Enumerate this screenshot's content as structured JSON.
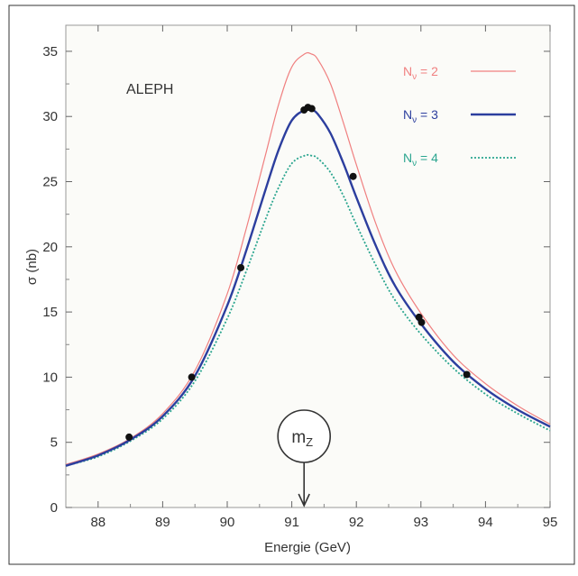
{
  "chart_data": {
    "type": "line",
    "title": "",
    "xlabel": "Energie (GeV)",
    "ylabel": "σ (nb)",
    "xlim": [
      87.5,
      95
    ],
    "ylim": [
      0,
      37
    ],
    "x_ticks": [
      "88",
      "89",
      "90",
      "91",
      "92",
      "93",
      "94",
      "95"
    ],
    "y_ticks": [
      "0",
      "5",
      "10",
      "15",
      "20",
      "25",
      "30",
      "35"
    ],
    "grid": false,
    "annotations": {
      "experiment": "ALEPH",
      "peak_marker": "mZ",
      "peak_marker_sub": "Z",
      "peak_marker_base": "m",
      "peak_x": 91.19
    },
    "legend": {
      "placement": "top-right",
      "entries": [
        {
          "label_base": "N",
          "label_sub": "ν",
          "label_rest": " = 2",
          "color": "#f08080",
          "style": "thin-solid"
        },
        {
          "label_base": "N",
          "label_sub": "ν",
          "label_rest": " = 3",
          "color": "#2c3e9e",
          "style": "thick-solid"
        },
        {
          "label_base": "N",
          "label_sub": "ν",
          "label_rest": " = 4",
          "color": "#2aa58f",
          "style": "dotted"
        }
      ]
    },
    "series": [
      {
        "name": "Nν = 2",
        "color": "#f08080",
        "x": [
          87.5,
          88.0,
          88.5,
          89.0,
          89.5,
          90.0,
          90.3,
          90.6,
          90.8,
          91.0,
          91.2,
          91.3,
          91.4,
          91.6,
          91.8,
          92.0,
          92.3,
          92.6,
          93.0,
          93.5,
          94.0,
          94.5,
          95.0
        ],
        "y": [
          3.3,
          4.1,
          5.3,
          7.2,
          10.5,
          16.4,
          21.5,
          27.2,
          31.0,
          33.8,
          34.8,
          34.8,
          34.4,
          32.5,
          29.5,
          26.3,
          21.8,
          18.2,
          14.9,
          11.7,
          9.5,
          7.8,
          6.4
        ]
      },
      {
        "name": "Nν = 3",
        "color": "#2c3e9e",
        "x": [
          87.5,
          88.0,
          88.5,
          89.0,
          89.5,
          90.0,
          90.3,
          90.6,
          90.8,
          91.0,
          91.2,
          91.3,
          91.4,
          91.6,
          91.8,
          92.0,
          92.3,
          92.6,
          93.0,
          93.5,
          94.0,
          94.5,
          95.0
        ],
        "y": [
          3.2,
          4.0,
          5.2,
          7.0,
          10.1,
          15.5,
          19.8,
          24.5,
          27.5,
          29.7,
          30.5,
          30.5,
          30.2,
          28.7,
          26.4,
          23.8,
          20.1,
          17.0,
          14.1,
          11.2,
          9.1,
          7.5,
          6.2
        ]
      },
      {
        "name": "Nν = 4",
        "color": "#2aa58f",
        "x": [
          87.5,
          88.0,
          88.5,
          89.0,
          89.5,
          90.0,
          90.3,
          90.6,
          90.8,
          91.0,
          91.2,
          91.3,
          91.4,
          91.6,
          91.8,
          92.0,
          92.3,
          92.6,
          93.0,
          93.5,
          94.0,
          94.5,
          95.0
        ],
        "y": [
          3.2,
          3.9,
          5.1,
          6.8,
          9.7,
          14.5,
          18.2,
          22.2,
          24.6,
          26.4,
          27.0,
          27.0,
          26.8,
          25.7,
          23.9,
          21.7,
          18.6,
          15.9,
          13.3,
          10.7,
          8.7,
          7.2,
          5.9
        ]
      }
    ],
    "data_points": {
      "name": "ALEPH data",
      "x": [
        88.48,
        89.45,
        90.21,
        91.19,
        91.25,
        91.31,
        91.95,
        92.97,
        93.01,
        93.71
      ],
      "y": [
        5.4,
        10.0,
        18.4,
        30.5,
        30.7,
        30.6,
        25.4,
        14.6,
        14.2,
        10.2
      ]
    }
  }
}
